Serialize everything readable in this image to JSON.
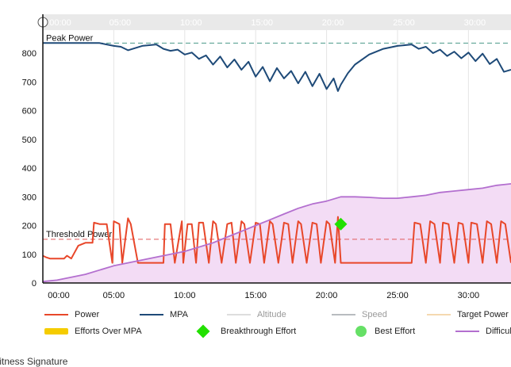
{
  "chart_data": {
    "type": "line",
    "title": "",
    "xlabel": "",
    "ylabel": "",
    "x_ticks": [
      "00:00",
      "05:00",
      "10:00",
      "15:00",
      "20:00",
      "25:00",
      "30:00"
    ],
    "y_ticks": [
      "0",
      "100",
      "200",
      "300",
      "400",
      "500",
      "600",
      "700",
      "800"
    ],
    "xlim": [
      0,
      33
    ],
    "ylim": [
      0,
      880
    ],
    "grid": "vertical",
    "reference_lines": [
      {
        "label": "Peak Power",
        "value": 835,
        "color": "#4a9a8a"
      },
      {
        "label": "Threshold Power",
        "value": 152,
        "color": "#e05a5a"
      }
    ],
    "series": [
      {
        "name": "Power",
        "color": "#e8472a",
        "x": [
          0,
          0.2,
          0.5,
          1,
          1.5,
          1.7,
          2,
          2.5,
          3,
          3.5,
          3.6,
          4,
          4.5,
          4.9,
          5,
          5.4,
          5.6,
          6,
          6.2,
          6.7,
          7,
          7.5,
          8,
          8.5,
          8.6,
          9,
          9.3,
          9.8,
          9.9,
          10.2,
          10.5,
          10.8,
          11,
          11.3,
          11.7,
          12,
          12.2,
          12.6,
          13,
          13.3,
          13.6,
          14,
          14.2,
          14.6,
          15,
          15.3,
          15.6,
          16,
          16.2,
          16.6,
          17,
          17.3,
          17.6,
          18,
          18.2,
          18.6,
          19,
          19.3,
          19.6,
          20,
          20.2,
          20.6,
          20.8,
          21,
          21.3,
          22,
          23,
          24,
          25,
          26,
          26.2,
          26.6,
          27,
          27.3,
          27.6,
          28,
          28.2,
          28.6,
          29,
          29.3,
          29.6,
          30,
          30.2,
          30.6,
          31,
          31.3,
          31.6,
          32,
          32.3,
          32.6,
          33
        ],
        "y": [
          95,
          90,
          85,
          85,
          85,
          95,
          85,
          130,
          140,
          140,
          210,
          205,
          205,
          70,
          215,
          205,
          70,
          225,
          205,
          70,
          70,
          70,
          70,
          70,
          205,
          205,
          70,
          215,
          70,
          205,
          205,
          70,
          210,
          210,
          70,
          215,
          205,
          70,
          205,
          210,
          70,
          215,
          205,
          70,
          210,
          205,
          70,
          215,
          205,
          70,
          210,
          205,
          70,
          215,
          205,
          70,
          210,
          205,
          70,
          215,
          205,
          70,
          230,
          70,
          70,
          70,
          70,
          70,
          70,
          70,
          210,
          205,
          70,
          215,
          205,
          70,
          210,
          205,
          70,
          210,
          205,
          70,
          210,
          205,
          70,
          215,
          205,
          70,
          215,
          205,
          70
        ]
      },
      {
        "name": "MPA",
        "color": "#1e4a78",
        "x": [
          0,
          2,
          4,
          4.5,
          5,
          5.5,
          6,
          7,
          8,
          8.5,
          9,
          9.5,
          10,
          10.5,
          11,
          11.5,
          12,
          12.5,
          13,
          13.5,
          14,
          14.5,
          15,
          15.5,
          16,
          16.5,
          17,
          17.5,
          18,
          18.5,
          19,
          19.5,
          20,
          20.5,
          20.8,
          21,
          21.5,
          22,
          23,
          24,
          25,
          26,
          26.5,
          27,
          27.5,
          28,
          28.5,
          29,
          29.5,
          30,
          30.5,
          31,
          31.5,
          32,
          32.5,
          33
        ],
        "y": [
          835,
          835,
          835,
          830,
          825,
          822,
          810,
          825,
          830,
          815,
          808,
          812,
          795,
          802,
          780,
          792,
          760,
          788,
          750,
          778,
          742,
          770,
          718,
          752,
          702,
          748,
          712,
          738,
          695,
          735,
          685,
          728,
          675,
          712,
          668,
          690,
          730,
          760,
          795,
          815,
          825,
          830,
          815,
          822,
          800,
          812,
          790,
          805,
          782,
          802,
          772,
          798,
          762,
          780,
          735,
          742
        ]
      },
      {
        "name": "Altitude",
        "color": "#dddddd",
        "x": [],
        "y": []
      },
      {
        "name": "Speed",
        "color": "#b8bcc0",
        "x": [],
        "y": []
      },
      {
        "name": "Target Power",
        "color": "#f5d9b0",
        "x": [],
        "y": []
      },
      {
        "name": "Difficulty",
        "color": "#b36fcf",
        "fill": "#f3dcf5",
        "x": [
          0,
          1,
          2,
          3,
          4,
          5,
          6,
          7,
          8,
          9,
          10,
          11,
          12,
          13,
          14,
          15,
          16,
          17,
          18,
          19,
          20,
          21,
          22,
          23,
          24,
          25,
          26,
          27,
          28,
          29,
          30,
          31,
          32,
          33
        ],
        "y": [
          5,
          10,
          20,
          30,
          45,
          60,
          70,
          80,
          90,
          100,
          110,
          125,
          140,
          160,
          180,
          200,
          220,
          240,
          260,
          275,
          285,
          300,
          300,
          298,
          295,
          295,
          300,
          305,
          315,
          320,
          325,
          330,
          340,
          345
        ]
      }
    ],
    "markers": [
      {
        "name": "Breakthrough Effort",
        "x": 21.0,
        "y": 205,
        "shape": "diamond",
        "color": "#22e000"
      }
    ],
    "legend": {
      "placement": "bottom",
      "items": [
        {
          "label": "Power",
          "kind": "line",
          "color": "#e8472a"
        },
        {
          "label": "MPA",
          "kind": "line",
          "color": "#1e4a78"
        },
        {
          "label": "Altitude",
          "kind": "line",
          "color": "#dddddd",
          "muted": true
        },
        {
          "label": "Speed",
          "kind": "line",
          "color": "#b8bcc0",
          "muted": true
        },
        {
          "label": "Target Power",
          "kind": "line",
          "color": "#f5d9b0"
        },
        {
          "label": "Efforts Over MPA",
          "kind": "block",
          "color": "#f5cc00"
        },
        {
          "label": "Breakthrough Effort",
          "kind": "diamond",
          "color": "#22e000"
        },
        {
          "label": "Best Effort",
          "kind": "dot",
          "color": "#66e066"
        },
        {
          "label": "Difficulty",
          "kind": "line",
          "color": "#b36fcf"
        }
      ]
    }
  },
  "page": {
    "section_title": "Fitness Signature"
  }
}
